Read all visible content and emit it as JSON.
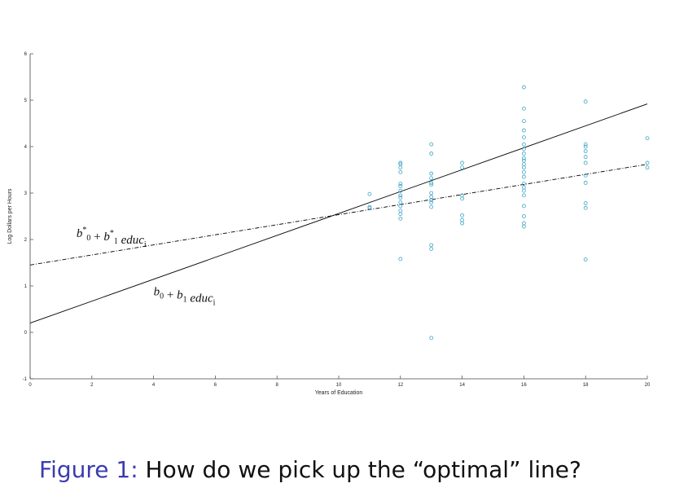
{
  "caption": {
    "label": "Figure 1:",
    "text": "How do we pick up the “optimal” line?"
  },
  "chart_data": {
    "type": "scatter",
    "title": "",
    "xlabel": "Years of Education",
    "ylabel": "Log Dollars per Hours",
    "xlim": [
      0,
      20
    ],
    "ylim": [
      -1,
      6
    ],
    "xticks": [
      0,
      2,
      4,
      6,
      8,
      10,
      12,
      14,
      16,
      18,
      20
    ],
    "yticks": [
      -1,
      0,
      1,
      2,
      3,
      4,
      5,
      6
    ],
    "grid": false,
    "legend": "none",
    "colors": {
      "points": "#3aa3c4",
      "lines": "#000000"
    },
    "points": [
      {
        "x": 11,
        "y": 2.98
      },
      {
        "x": 11,
        "y": 2.7
      },
      {
        "x": 11,
        "y": 2.68
      },
      {
        "x": 12,
        "y": 3.65
      },
      {
        "x": 12,
        "y": 3.62
      },
      {
        "x": 12,
        "y": 3.55
      },
      {
        "x": 12,
        "y": 3.45
      },
      {
        "x": 12,
        "y": 3.2
      },
      {
        "x": 12,
        "y": 3.15
      },
      {
        "x": 12,
        "y": 3.05
      },
      {
        "x": 12,
        "y": 2.95
      },
      {
        "x": 12,
        "y": 2.9
      },
      {
        "x": 12,
        "y": 2.8
      },
      {
        "x": 12,
        "y": 2.72
      },
      {
        "x": 12,
        "y": 2.62
      },
      {
        "x": 12,
        "y": 2.55
      },
      {
        "x": 12,
        "y": 2.45
      },
      {
        "x": 12,
        "y": 1.58
      },
      {
        "x": 13,
        "y": 4.05
      },
      {
        "x": 13,
        "y": 3.85
      },
      {
        "x": 13,
        "y": 3.42
      },
      {
        "x": 13,
        "y": 3.32
      },
      {
        "x": 13,
        "y": 3.22
      },
      {
        "x": 13,
        "y": 3.18
      },
      {
        "x": 13,
        "y": 3.0
      },
      {
        "x": 13,
        "y": 2.92
      },
      {
        "x": 13,
        "y": 2.85
      },
      {
        "x": 13,
        "y": 2.8
      },
      {
        "x": 13,
        "y": 2.7
      },
      {
        "x": 13,
        "y": 1.88
      },
      {
        "x": 13,
        "y": 1.8
      },
      {
        "x": 13,
        "y": -0.12
      },
      {
        "x": 14,
        "y": 3.65
      },
      {
        "x": 14,
        "y": 3.55
      },
      {
        "x": 14,
        "y": 2.95
      },
      {
        "x": 14,
        "y": 2.88
      },
      {
        "x": 14,
        "y": 2.52
      },
      {
        "x": 14,
        "y": 2.42
      },
      {
        "x": 14,
        "y": 2.35
      },
      {
        "x": 16,
        "y": 5.28
      },
      {
        "x": 16,
        "y": 4.82
      },
      {
        "x": 16,
        "y": 4.55
      },
      {
        "x": 16,
        "y": 4.35
      },
      {
        "x": 16,
        "y": 4.2
      },
      {
        "x": 16,
        "y": 4.05
      },
      {
        "x": 16,
        "y": 3.95
      },
      {
        "x": 16,
        "y": 3.85
      },
      {
        "x": 16,
        "y": 3.75
      },
      {
        "x": 16,
        "y": 3.7
      },
      {
        "x": 16,
        "y": 3.62
      },
      {
        "x": 16,
        "y": 3.55
      },
      {
        "x": 16,
        "y": 3.45
      },
      {
        "x": 16,
        "y": 3.35
      },
      {
        "x": 16,
        "y": 3.2
      },
      {
        "x": 16,
        "y": 3.12
      },
      {
        "x": 16,
        "y": 3.05
      },
      {
        "x": 16,
        "y": 2.95
      },
      {
        "x": 16,
        "y": 2.72
      },
      {
        "x": 16,
        "y": 2.5
      },
      {
        "x": 16,
        "y": 2.35
      },
      {
        "x": 16,
        "y": 2.28
      },
      {
        "x": 18,
        "y": 4.97
      },
      {
        "x": 18,
        "y": 4.05
      },
      {
        "x": 18,
        "y": 4.0
      },
      {
        "x": 18,
        "y": 3.9
      },
      {
        "x": 18,
        "y": 3.78
      },
      {
        "x": 18,
        "y": 3.65
      },
      {
        "x": 18,
        "y": 3.38
      },
      {
        "x": 18,
        "y": 3.22
      },
      {
        "x": 18,
        "y": 2.78
      },
      {
        "x": 18,
        "y": 2.68
      },
      {
        "x": 18,
        "y": 1.57
      },
      {
        "x": 20,
        "y": 4.18
      },
      {
        "x": 20,
        "y": 3.65
      },
      {
        "x": 20,
        "y": 3.55
      }
    ],
    "lines": [
      {
        "style": "solid",
        "x": [
          0,
          20
        ],
        "y": [
          0.2,
          4.92
        ]
      },
      {
        "style": "dashdot",
        "x": [
          0,
          20
        ],
        "y": [
          1.45,
          3.62
        ]
      }
    ],
    "annotations": [
      {
        "base": "b",
        "sub0": "0",
        "sup0": "*",
        "plus": "+",
        "sub1": "1",
        "sup1": "*",
        "var": "educ",
        "varsub": "i",
        "x": 1.5,
        "y": 2.05
      },
      {
        "base": "b",
        "sub0": "0",
        "sup0": "",
        "plus": "+",
        "sub1": "1",
        "sup1": "",
        "var": "educ",
        "varsub": "i",
        "x": 4.0,
        "y": 0.8
      }
    ]
  }
}
